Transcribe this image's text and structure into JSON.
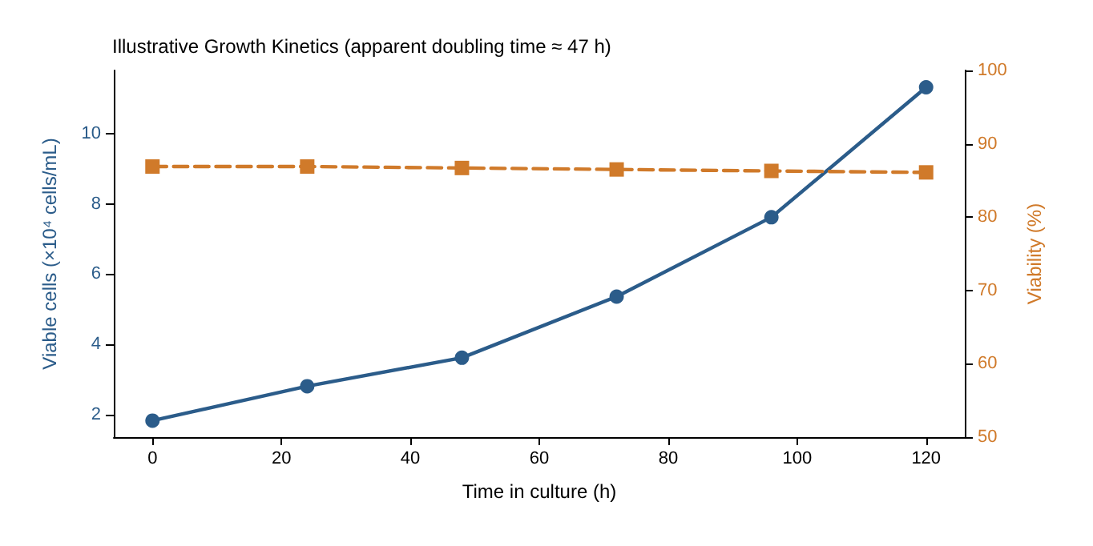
{
  "chart_data": {
    "type": "line",
    "title": "Illustrative Growth Kinetics (apparent doubling time ≈ 47 h)",
    "xlabel": "Time in culture (h)",
    "ylabel": "Viable cells (×10⁴ cells/mL)",
    "y2label": "Viability (%)",
    "x": [
      0,
      24,
      48,
      72,
      96,
      120
    ],
    "xlim": [
      -6,
      126
    ],
    "xticks": [
      0,
      20,
      40,
      60,
      80,
      100,
      120
    ],
    "ylim": [
      1.36,
      11.8
    ],
    "yticks": [
      2,
      4,
      6,
      8,
      10
    ],
    "y2lim": [
      50,
      100
    ],
    "y2ticks": [
      50,
      60,
      70,
      80,
      90,
      100
    ],
    "grid": false,
    "series": [
      {
        "color": "#2b5c8a",
        "values": [
          1.83,
          2.81,
          3.62,
          5.36,
          7.62,
          11.32
        ],
        "marker": "circle",
        "line_style": "solid"
      },
      {
        "color": "#d07a2a",
        "values": [
          86.9,
          86.9,
          86.7,
          86.5,
          86.3,
          86.1
        ],
        "axis": "y2",
        "marker": "square",
        "line_style": "dashed"
      }
    ]
  }
}
